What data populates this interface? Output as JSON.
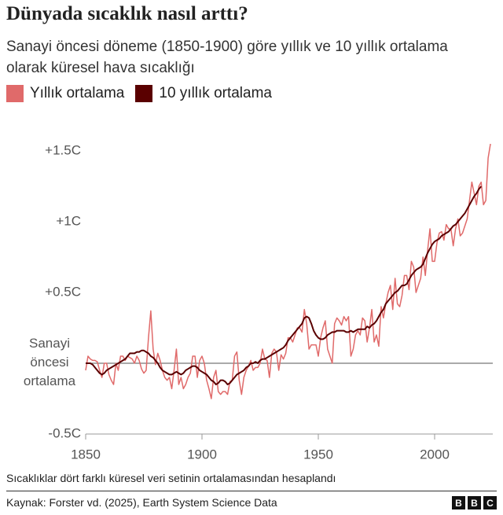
{
  "chart_data": {
    "type": "line",
    "title": "Dünyada sıcaklık nasıl arttı?",
    "subtitle": "Sanayi öncesi döneme (1850-1900) göre yıllık ve 10 yıllık ortalama olarak küresel hava sıcaklığı",
    "note": "Sıcaklıklar dört farklı küresel veri setinin ortalamasından hesaplandı",
    "source": "Kaynak: Forster vd. (2025), Earth System Science Data",
    "logo": [
      "B",
      "B",
      "C"
    ],
    "x": [
      1850,
      1851,
      1852,
      1853,
      1854,
      1855,
      1856,
      1857,
      1858,
      1859,
      1860,
      1861,
      1862,
      1863,
      1864,
      1865,
      1866,
      1867,
      1868,
      1869,
      1870,
      1871,
      1872,
      1873,
      1874,
      1875,
      1876,
      1877,
      1878,
      1879,
      1880,
      1881,
      1882,
      1883,
      1884,
      1885,
      1886,
      1887,
      1888,
      1889,
      1890,
      1891,
      1892,
      1893,
      1894,
      1895,
      1896,
      1897,
      1898,
      1899,
      1900,
      1901,
      1902,
      1903,
      1904,
      1905,
      1906,
      1907,
      1908,
      1909,
      1910,
      1911,
      1912,
      1913,
      1914,
      1915,
      1916,
      1917,
      1918,
      1919,
      1920,
      1921,
      1922,
      1923,
      1924,
      1925,
      1926,
      1927,
      1928,
      1929,
      1930,
      1931,
      1932,
      1933,
      1934,
      1935,
      1936,
      1937,
      1938,
      1939,
      1940,
      1941,
      1942,
      1943,
      1944,
      1945,
      1946,
      1947,
      1948,
      1949,
      1950,
      1951,
      1952,
      1953,
      1954,
      1955,
      1956,
      1957,
      1958,
      1959,
      1960,
      1961,
      1962,
      1963,
      1964,
      1965,
      1966,
      1967,
      1968,
      1969,
      1970,
      1971,
      1972,
      1973,
      1974,
      1975,
      1976,
      1977,
      1978,
      1979,
      1980,
      1981,
      1982,
      1983,
      1984,
      1985,
      1986,
      1987,
      1988,
      1989,
      1990,
      1991,
      1992,
      1993,
      1994,
      1995,
      1996,
      1997,
      1998,
      1999,
      2000,
      2001,
      2002,
      2003,
      2004,
      2005,
      2006,
      2007,
      2008,
      2009,
      2010,
      2011,
      2012,
      2013,
      2014,
      2015,
      2016,
      2017,
      2018,
      2019,
      2020,
      2021,
      2022,
      2023,
      2024
    ],
    "series": [
      {
        "name": "Yıllık ortalama",
        "color": "#e06a6a",
        "width": 1.5,
        "values": [
          -0.05,
          0.05,
          0.03,
          0.02,
          0.02,
          0.01,
          -0.05,
          -0.1,
          0.0,
          0.0,
          -0.08,
          -0.12,
          -0.15,
          0.0,
          -0.05,
          0.05,
          0.05,
          0.02,
          0.05,
          0.04,
          0.03,
          0.0,
          0.05,
          0.02,
          -0.04,
          -0.07,
          -0.05,
          0.18,
          0.37,
          0.1,
          -0.01,
          0.07,
          0.02,
          -0.05,
          -0.1,
          -0.12,
          -0.1,
          -0.18,
          -0.05,
          0.1,
          -0.15,
          -0.1,
          -0.18,
          -0.15,
          -0.1,
          -0.07,
          0.05,
          0.05,
          -0.1,
          0.02,
          0.05,
          0.0,
          -0.12,
          -0.18,
          -0.25,
          -0.1,
          -0.05,
          -0.2,
          -0.22,
          -0.2,
          -0.2,
          -0.22,
          -0.13,
          -0.12,
          0.05,
          0.08,
          -0.12,
          -0.22,
          -0.1,
          -0.05,
          -0.02,
          0.02,
          -0.05,
          -0.03,
          -0.03,
          0.0,
          0.1,
          0.03,
          0.02,
          -0.1,
          0.07,
          0.1,
          0.08,
          -0.05,
          0.06,
          0.03,
          0.07,
          0.18,
          0.18,
          0.15,
          0.2,
          0.25,
          0.25,
          0.22,
          0.38,
          0.28,
          0.1,
          0.13,
          0.13,
          0.13,
          0.05,
          0.18,
          0.25,
          0.3,
          0.1,
          0.05,
          0.0,
          0.28,
          0.32,
          0.3,
          0.27,
          0.33,
          0.3,
          0.33,
          0.05,
          0.1,
          0.2,
          0.23,
          0.2,
          0.32,
          0.3,
          0.15,
          0.25,
          0.38,
          0.15,
          0.2,
          0.12,
          0.4,
          0.32,
          0.42,
          0.5,
          0.55,
          0.38,
          0.6,
          0.42,
          0.4,
          0.48,
          0.62,
          0.62,
          0.52,
          0.72,
          0.68,
          0.5,
          0.55,
          0.6,
          0.75,
          0.62,
          0.8,
          0.95,
          0.72,
          0.72,
          0.85,
          0.92,
          0.93,
          0.87,
          0.98,
          0.95,
          0.95,
          0.83,
          0.95,
          1.02,
          0.9,
          0.92,
          0.97,
          1.02,
          1.15,
          1.28,
          1.2,
          1.12,
          1.25,
          1.28,
          1.12,
          1.15,
          1.45,
          1.55
        ]
      },
      {
        "name": "10 yıllık ortalama",
        "color": "#5a0000",
        "width": 2,
        "values": [
          0.0,
          0.0,
          0.0,
          -0.01,
          -0.03,
          -0.05,
          -0.07,
          -0.08,
          -0.07,
          -0.05,
          -0.04,
          -0.03,
          -0.02,
          -0.01,
          0.0,
          0.01,
          0.02,
          0.03,
          0.05,
          0.07,
          0.07,
          0.07,
          0.08,
          0.08,
          0.09,
          0.09,
          0.08,
          0.07,
          0.05,
          0.04,
          0.02,
          0.0,
          -0.03,
          -0.05,
          -0.06,
          -0.07,
          -0.08,
          -0.08,
          -0.07,
          -0.06,
          -0.07,
          -0.08,
          -0.07,
          -0.05,
          -0.04,
          -0.03,
          -0.02,
          -0.02,
          -0.03,
          -0.05,
          -0.06,
          -0.07,
          -0.08,
          -0.1,
          -0.12,
          -0.13,
          -0.15,
          -0.14,
          -0.12,
          -0.12,
          -0.13,
          -0.15,
          -0.14,
          -0.12,
          -0.1,
          -0.08,
          -0.07,
          -0.06,
          -0.05,
          -0.03,
          -0.02,
          0.0,
          0.0,
          0.01,
          0.0,
          0.02,
          0.03,
          0.03,
          0.04,
          0.05,
          0.06,
          0.07,
          0.08,
          0.09,
          0.1,
          0.11,
          0.13,
          0.16,
          0.18,
          0.2,
          0.22,
          0.24,
          0.26,
          0.28,
          0.32,
          0.33,
          0.32,
          0.28,
          0.23,
          0.2,
          0.18,
          0.17,
          0.17,
          0.18,
          0.2,
          0.21,
          0.22,
          0.22,
          0.23,
          0.23,
          0.23,
          0.23,
          0.22,
          0.22,
          0.23,
          0.22,
          0.23,
          0.24,
          0.24,
          0.24,
          0.24,
          0.26,
          0.25,
          0.27,
          0.28,
          0.3,
          0.33,
          0.36,
          0.38,
          0.42,
          0.44,
          0.46,
          0.48,
          0.5,
          0.51,
          0.53,
          0.55,
          0.55,
          0.56,
          0.59,
          0.62,
          0.64,
          0.66,
          0.67,
          0.68,
          0.7,
          0.74,
          0.78,
          0.81,
          0.84,
          0.86,
          0.87,
          0.88,
          0.9,
          0.91,
          0.92,
          0.93,
          0.95,
          0.97,
          0.98,
          1.0,
          1.02,
          1.04,
          1.06,
          1.09,
          1.12,
          1.15,
          1.18,
          1.2,
          1.23,
          1.25,
          null,
          null,
          null,
          null
        ]
      }
    ],
    "xlim": [
      1850,
      2025
    ],
    "xticks": [
      1850,
      1900,
      1950,
      2000
    ],
    "ylim": [
      -0.5,
      1.6
    ],
    "yticks": [
      {
        "value": -0.5,
        "label": "-0.5C"
      },
      {
        "value": 0,
        "label": "Sanayi öncesi ortalama"
      },
      {
        "value": 0.5,
        "label": "+0.5C"
      },
      {
        "value": 1,
        "label": "+1C"
      },
      {
        "value": 1.5,
        "label": "+1.5C"
      }
    ]
  }
}
